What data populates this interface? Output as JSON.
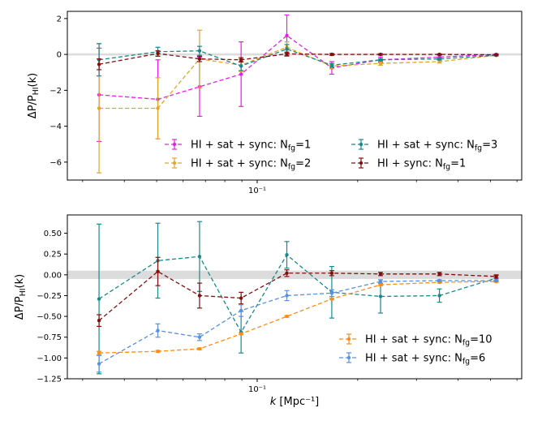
{
  "chart_data": [
    {
      "type": "line",
      "xscale": "log",
      "xlim": [
        0.027,
        0.62
      ],
      "ylim": [
        -7.0,
        2.4
      ],
      "ylabel": "ΔP/P_HI(k)",
      "yticks": [
        2,
        0,
        -2,
        -4,
        -6
      ],
      "ytick_labels": [
        "2",
        "0",
        "−2",
        "−4",
        "−6"
      ],
      "xticks": [
        0.1
      ],
      "xtick_labels": [
        "10⁻¹"
      ],
      "band": [
        -0.06,
        0.06
      ],
      "legend_position": "lower-right",
      "legend_columns": 2,
      "series": [
        {
          "name": "HI + sat + sync: N_fg=1",
          "color": "#e81de8",
          "x": [
            0.0336,
            0.0504,
            0.0672,
            0.0895,
            0.1227,
            0.1673,
            0.2342,
            0.3515,
            0.52
          ],
          "y": [
            -2.25,
            -2.5,
            -1.8,
            -1.1,
            1.05,
            -0.75,
            -0.3,
            -0.15,
            0.0
          ],
          "yerr": [
            2.6,
            2.2,
            1.65,
            1.8,
            1.15,
            0.35,
            0.15,
            0.1,
            0.04
          ]
        },
        {
          "name": "HI + sat + sync: N_fg=2",
          "color": "#e0a52a",
          "x": [
            0.0336,
            0.0504,
            0.0672,
            0.0895,
            0.1227,
            0.1673,
            0.2342,
            0.3515,
            0.52
          ],
          "y": [
            -3.0,
            -3.0,
            -0.25,
            -0.6,
            0.4,
            -0.65,
            -0.5,
            -0.4,
            -0.05
          ],
          "yerr": [
            3.6,
            1.7,
            1.6,
            0.35,
            0.3,
            0.15,
            0.1,
            0.08,
            0.04
          ]
        },
        {
          "name": "HI + sat + sync: N_fg=3",
          "color": "#17898a",
          "x": [
            0.0336,
            0.0504,
            0.0672,
            0.0895,
            0.1227,
            0.1673,
            0.2342,
            0.3515,
            0.52
          ],
          "y": [
            -0.3,
            0.15,
            0.2,
            -0.65,
            0.3,
            -0.6,
            -0.3,
            -0.25,
            -0.05
          ],
          "yerr": [
            0.9,
            0.25,
            0.25,
            0.25,
            0.25,
            0.1,
            0.06,
            0.06,
            0.03
          ]
        },
        {
          "name": "HI + sync: N_fg=1",
          "color": "#801010",
          "x": [
            0.0336,
            0.0504,
            0.0672,
            0.0895,
            0.1227,
            0.1673,
            0.2342,
            0.3515,
            0.52
          ],
          "y": [
            -0.55,
            0.05,
            -0.25,
            -0.3,
            0.03,
            0.0,
            0.0,
            0.0,
            -0.02
          ],
          "yerr": [
            0.3,
            0.15,
            0.15,
            0.12,
            0.1,
            0.05,
            0.04,
            0.03,
            0.02
          ]
        }
      ]
    },
    {
      "type": "line",
      "xscale": "log",
      "xlim": [
        0.027,
        0.62
      ],
      "ylim": [
        -1.25,
        0.72
      ],
      "xlabel": "k [Mpc⁻¹]",
      "ylabel": "ΔP/P_HI(k)",
      "yticks": [
        0.5,
        0.25,
        0.0,
        -0.25,
        -0.5,
        -0.75,
        -1.0,
        -1.25
      ],
      "ytick_labels": [
        "0.50",
        "0.25",
        "0.00",
        "−0.25",
        "−0.50",
        "−0.75",
        "−1.00",
        "−1.25"
      ],
      "xticks": [
        0.1
      ],
      "xtick_labels": [
        "10⁻¹"
      ],
      "band": [
        -0.05,
        0.05
      ],
      "legend_position": "lower-right",
      "legend_columns": 1,
      "series": [
        {
          "name": "HI + sat + sync: N_fg=3",
          "color": "#17898a",
          "legend": false,
          "x": [
            0.0336,
            0.0504,
            0.0672,
            0.0895,
            0.1227,
            0.1673,
            0.2342,
            0.3515,
            0.52
          ],
          "y": [
            -0.29,
            0.17,
            0.22,
            -0.69,
            0.24,
            -0.21,
            -0.26,
            -0.25,
            -0.04
          ],
          "yerr": [
            0.9,
            0.45,
            0.42,
            0.25,
            0.16,
            0.31,
            0.2,
            0.08,
            0.03
          ]
        },
        {
          "name": "HI + sync: N_fg=1",
          "color": "#801010",
          "legend": false,
          "x": [
            0.0336,
            0.0504,
            0.0672,
            0.0895,
            0.1227,
            0.1673,
            0.2342,
            0.3515,
            0.52
          ],
          "y": [
            -0.55,
            0.04,
            -0.25,
            -0.28,
            0.02,
            0.02,
            0.01,
            0.01,
            -0.02
          ],
          "yerr": [
            0.07,
            0.17,
            0.15,
            0.07,
            0.04,
            0.03,
            0.02,
            0.02,
            0.02
          ]
        },
        {
          "name": "HI + sat + sync: N_fg=10",
          "color": "#ff8c17",
          "legend": true,
          "x": [
            0.0336,
            0.0504,
            0.0672,
            0.0895,
            0.1227,
            0.1673,
            0.2342,
            0.3515,
            0.52
          ],
          "y": [
            -0.94,
            -0.92,
            -0.89,
            -0.71,
            -0.5,
            -0.29,
            -0.12,
            -0.09,
            -0.08
          ],
          "yerr": [
            0.02,
            0.01,
            0.01,
            0.01,
            0.01,
            0.01,
            0.01,
            0.01,
            0.01
          ]
        },
        {
          "name": "HI + sat + sync: N_fg=6",
          "color": "#5b8fe0",
          "legend": true,
          "x": [
            0.0336,
            0.0504,
            0.0672,
            0.0895,
            0.1227,
            0.1673,
            0.2342,
            0.3515,
            0.52
          ],
          "y": [
            -1.07,
            -0.67,
            -0.75,
            -0.43,
            -0.25,
            -0.22,
            -0.08,
            -0.07,
            -0.07
          ],
          "yerr": [
            0.1,
            0.08,
            0.04,
            0.07,
            0.06,
            0.04,
            0.02,
            0.01,
            0.01
          ]
        }
      ]
    }
  ]
}
